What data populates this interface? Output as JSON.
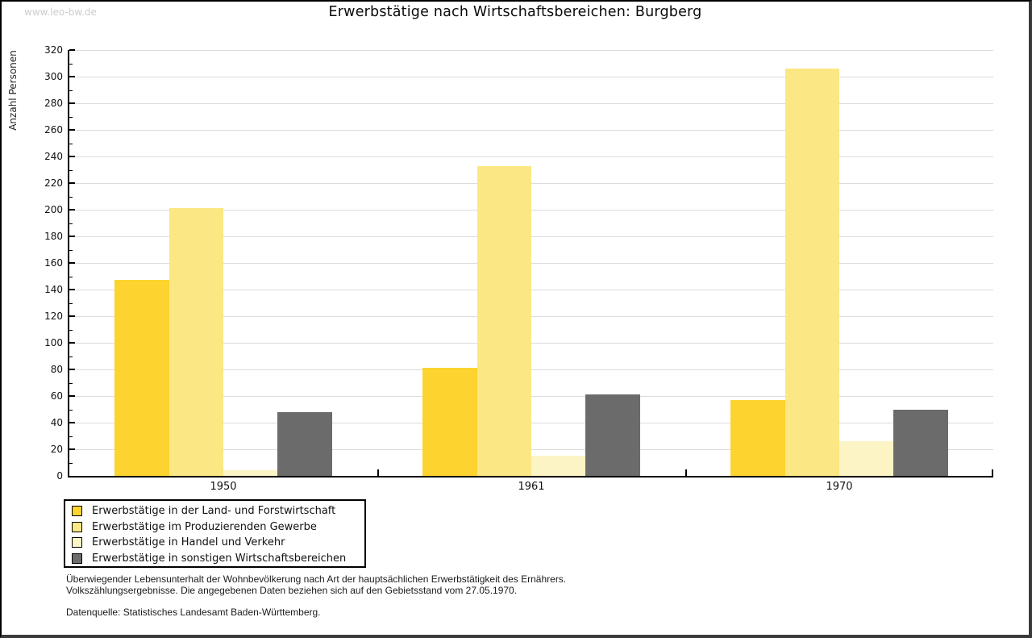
{
  "watermark": "www.leo-bw.de",
  "title": "Erwerbstätige nach Wirtschaftsbereichen: Burgberg",
  "chart_data": {
    "type": "bar",
    "title": "Erwerbstätige nach Wirtschaftsbereichen: Burgberg",
    "xlabel": "",
    "ylabel": "Anzahl Personen",
    "categories": [
      "1950",
      "1961",
      "1970"
    ],
    "series": [
      {
        "name": "Erwerbstätige in der Land- und Forstwirtschaft",
        "color": "#fcd32f",
        "values": [
          147,
          81,
          57
        ]
      },
      {
        "name": "Erwerbstätige im Produzierenden Gewerbe",
        "color": "#fbe783",
        "values": [
          201,
          233,
          306
        ]
      },
      {
        "name": "Erwerbstätige in Handel und Verkehr",
        "color": "#fcf4c4",
        "values": [
          4,
          15,
          26
        ]
      },
      {
        "name": "Erwerbstätige in sonstigen Wirtschaftsbereichen",
        "color": "#6b6b6b",
        "values": [
          48,
          61,
          50
        ]
      }
    ],
    "ylim": [
      0,
      320
    ],
    "ytick_step": 20,
    "ytick_minor_step": 10,
    "grid": "horizontal",
    "legend_position": "bottom-left"
  },
  "footnotes": {
    "line1": "Überwiegender Lebensunterhalt der Wohnbevölkerung nach Art der hauptsächlichen Erwerbstätigkeit des Ernährers.",
    "line2": "Volkszählungsergebnisse. Die angegebenen Daten beziehen sich auf den Gebietsstand vom 27.05.1970.",
    "source": "Datenquelle: Statistisches Landesamt Baden-Württemberg."
  },
  "colors": {
    "grid": "#dcdcdc",
    "axis": "#000000",
    "watermark": "#cccccc",
    "background": "#ffffff"
  }
}
